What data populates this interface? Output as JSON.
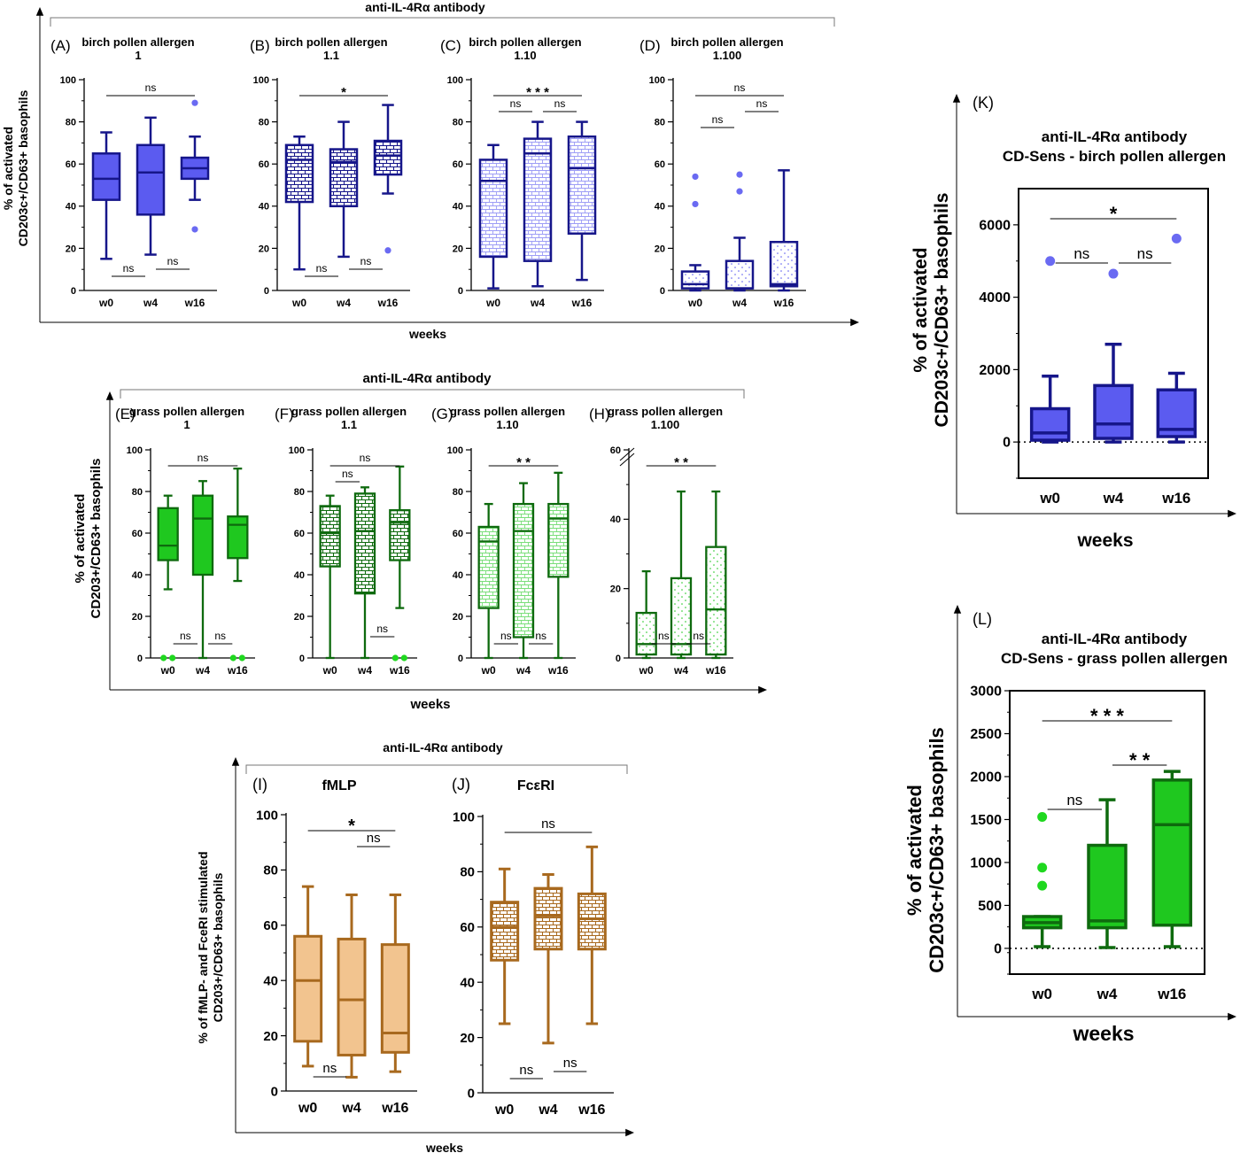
{
  "figure": {
    "antibody_label": "anti-IL-4Rα antibody",
    "xlabel": "weeks",
    "ylabel_line1": "% of activated",
    "ylabel_line2_a": "CD203c+/CD63+ basophils",
    "ylabel_line2_b": "CD203+/CD63+ basophils",
    "ylabel_I_line1": "% of fMLP- and FceRI stimulated",
    "ylabel_I_line2": "CD203+/CD63+ basophils"
  },
  "colors": {
    "birch_fill": "#5b5bf0",
    "birch_edge": "#16168a",
    "grass_fill": "#1fc81f",
    "grass_edge": "#0e6a0e",
    "ctrl_fill": "#f2c48f",
    "ctrl_edge": "#a8691e",
    "birch_outlier": "#6a6af2",
    "grass_outlier": "#1fd81f"
  },
  "chart_data": [
    {
      "id": "A",
      "type": "box",
      "panel_label": "(A)",
      "title": [
        "birch pollen allergen",
        "1"
      ],
      "categories": [
        "w0",
        "w4",
        "w16"
      ],
      "ylim": [
        0,
        100
      ],
      "yticks": [
        0,
        20,
        40,
        60,
        80,
        100
      ],
      "style": "birch",
      "pattern": "solid",
      "boxes": [
        {
          "whisker_low": 15,
          "q1": 43,
          "median": 53,
          "q3": 65,
          "whisker_high": 75,
          "outliers": []
        },
        {
          "whisker_low": 17,
          "q1": 36,
          "median": 56,
          "q3": 69,
          "whisker_high": 82,
          "outliers": []
        },
        {
          "whisker_low": 43,
          "q1": 53,
          "median": 58,
          "q3": 63,
          "whisker_high": 73,
          "outliers": [
            29,
            89
          ]
        }
      ],
      "significance": [
        {
          "from": 0,
          "to": 2,
          "label": "ns",
          "pos": "top",
          "level": 0
        },
        {
          "from": 0,
          "to": 1,
          "label": "ns",
          "pos": "bottom",
          "level": 0
        },
        {
          "from": 1,
          "to": 2,
          "label": "ns",
          "pos": "bottom",
          "level": 1
        }
      ]
    },
    {
      "id": "B",
      "type": "box",
      "panel_label": "(B)",
      "title": [
        "birch pollen allergen",
        "1.1"
      ],
      "categories": [
        "w0",
        "w4",
        "w16"
      ],
      "ylim": [
        0,
        100
      ],
      "yticks": [
        0,
        20,
        40,
        60,
        80,
        100
      ],
      "style": "birch",
      "pattern": "brick",
      "boxes": [
        {
          "whisker_low": 10,
          "q1": 42,
          "median": 62,
          "q3": 69,
          "whisker_high": 73,
          "outliers": []
        },
        {
          "whisker_low": 16,
          "q1": 40,
          "median": 61,
          "q3": 67,
          "whisker_high": 80,
          "outliers": []
        },
        {
          "whisker_low": 46,
          "q1": 55,
          "median": 64,
          "q3": 71,
          "whisker_high": 88,
          "outliers": [
            19
          ]
        }
      ],
      "significance": [
        {
          "from": 0,
          "to": 2,
          "label": "*",
          "pos": "top",
          "level": 0
        },
        {
          "from": 0,
          "to": 1,
          "label": "ns",
          "pos": "bottom",
          "level": 0
        },
        {
          "from": 1,
          "to": 2,
          "label": "ns",
          "pos": "bottom",
          "level": 1
        }
      ]
    },
    {
      "id": "C",
      "type": "box",
      "panel_label": "(C)",
      "title": [
        "birch pollen allergen",
        "1.10"
      ],
      "categories": [
        "w0",
        "w4",
        "w16"
      ],
      "ylim": [
        0,
        100
      ],
      "yticks": [
        0,
        20,
        40,
        60,
        80,
        100
      ],
      "style": "birch",
      "pattern": "lightbrick",
      "boxes": [
        {
          "whisker_low": 1,
          "q1": 16,
          "median": 52,
          "q3": 62,
          "whisker_high": 69,
          "outliers": []
        },
        {
          "whisker_low": 2,
          "q1": 14,
          "median": 65,
          "q3": 72,
          "whisker_high": 80,
          "outliers": []
        },
        {
          "whisker_low": 5,
          "q1": 27,
          "median": 58,
          "q3": 73,
          "whisker_high": 80,
          "outliers": []
        }
      ],
      "significance": [
        {
          "from": 0,
          "to": 2,
          "label": "* * *",
          "pos": "top",
          "level": 0
        },
        {
          "from": 0,
          "to": 1,
          "label": "ns",
          "pos": "top",
          "level": 1
        },
        {
          "from": 1,
          "to": 2,
          "label": "ns",
          "pos": "top",
          "level": 1
        }
      ]
    },
    {
      "id": "D",
      "type": "box",
      "panel_label": "(D)",
      "title": [
        "birch pollen allergen",
        "1.100"
      ],
      "categories": [
        "w0",
        "w4",
        "w16"
      ],
      "ylim": [
        0,
        100
      ],
      "yticks": [
        0,
        20,
        40,
        60,
        80,
        100
      ],
      "style": "birch",
      "pattern": "dots",
      "boxes": [
        {
          "whisker_low": 0,
          "q1": 1,
          "median": 3,
          "q3": 9,
          "whisker_high": 12,
          "outliers": [
            41,
            54
          ]
        },
        {
          "whisker_low": 0,
          "q1": 1,
          "median": 1,
          "q3": 14,
          "whisker_high": 25,
          "outliers": [
            47,
            55
          ]
        },
        {
          "whisker_low": 0,
          "q1": 2,
          "median": 3,
          "q3": 23,
          "whisker_high": 57,
          "outliers": []
        }
      ],
      "significance": [
        {
          "from": 0,
          "to": 2,
          "label": "ns",
          "pos": "top",
          "level": 0
        },
        {
          "from": 1,
          "to": 2,
          "label": "ns",
          "pos": "top",
          "level": 1
        },
        {
          "from": 0,
          "to": 1,
          "label": "ns",
          "pos": "top",
          "level": 2
        }
      ]
    },
    {
      "id": "E",
      "type": "box",
      "panel_label": "(E)",
      "title": [
        "grass pollen allergen",
        "1"
      ],
      "categories": [
        "w0",
        "w4",
        "w16"
      ],
      "ylim": [
        0,
        100
      ],
      "yticks": [
        0,
        20,
        40,
        60,
        80,
        100
      ],
      "style": "grass",
      "pattern": "solid",
      "boxes": [
        {
          "whisker_low": 33,
          "q1": 47,
          "median": 54,
          "q3": 72,
          "whisker_high": 78,
          "outliers": [
            0,
            0
          ]
        },
        {
          "whisker_low": 0,
          "q1": 40,
          "median": 67,
          "q3": 78,
          "whisker_high": 85,
          "outliers": []
        },
        {
          "whisker_low": 37,
          "q1": 48,
          "median": 64,
          "q3": 68,
          "whisker_high": 91,
          "outliers": [
            0,
            0
          ]
        }
      ],
      "significance": [
        {
          "from": 0,
          "to": 2,
          "label": "ns",
          "pos": "top",
          "level": 0
        },
        {
          "from": 0,
          "to": 1,
          "label": "ns",
          "pos": "bottom",
          "level": 0
        },
        {
          "from": 1,
          "to": 2,
          "label": "ns",
          "pos": "bottom",
          "level": 0
        }
      ]
    },
    {
      "id": "F",
      "type": "box",
      "panel_label": "(F)",
      "title": [
        "grass pollen allergen",
        "1.1"
      ],
      "categories": [
        "w0",
        "w4",
        "w16"
      ],
      "ylim": [
        0,
        100
      ],
      "yticks": [
        0,
        20,
        40,
        60,
        80,
        100
      ],
      "style": "grass",
      "pattern": "brick",
      "boxes": [
        {
          "whisker_low": 0,
          "q1": 44,
          "median": 60,
          "q3": 73,
          "whisker_high": 78,
          "outliers": []
        },
        {
          "whisker_low": 0,
          "q1": 31,
          "median": 61,
          "q3": 79,
          "whisker_high": 82,
          "outliers": []
        },
        {
          "whisker_low": 24,
          "q1": 47,
          "median": 65,
          "q3": 71,
          "whisker_high": 92,
          "outliers": [
            0,
            0
          ]
        }
      ],
      "significance": [
        {
          "from": 0,
          "to": 2,
          "label": "ns",
          "pos": "top",
          "level": 0
        },
        {
          "from": 0,
          "to": 1,
          "label": "ns",
          "pos": "top",
          "level": 1
        },
        {
          "from": 1,
          "to": 2,
          "label": "ns",
          "pos": "bottom",
          "level": 1
        }
      ]
    },
    {
      "id": "G",
      "type": "box",
      "panel_label": "(G)",
      "title": [
        "grass pollen allergen",
        "1.10"
      ],
      "categories": [
        "w0",
        "w4",
        "w16"
      ],
      "ylim": [
        0,
        100
      ],
      "yticks": [
        0,
        20,
        40,
        60,
        80,
        100
      ],
      "style": "grass",
      "pattern": "lightbrick",
      "boxes": [
        {
          "whisker_low": 0,
          "q1": 24,
          "median": 56,
          "q3": 63,
          "whisker_high": 74,
          "outliers": []
        },
        {
          "whisker_low": 0,
          "q1": 10,
          "median": 61,
          "q3": 74,
          "whisker_high": 84,
          "outliers": []
        },
        {
          "whisker_low": 0,
          "q1": 39,
          "median": 67,
          "q3": 74,
          "whisker_high": 89,
          "outliers": []
        }
      ],
      "significance": [
        {
          "from": 0,
          "to": 2,
          "label": "* *",
          "pos": "top",
          "level": 0
        },
        {
          "from": 0,
          "to": 1,
          "label": "ns",
          "pos": "bottom",
          "level": 0
        },
        {
          "from": 1,
          "to": 2,
          "label": "ns",
          "pos": "bottom",
          "level": 0
        }
      ]
    },
    {
      "id": "H",
      "type": "box",
      "panel_label": "(H)",
      "title": [
        "grass pollen allergen",
        "1.100"
      ],
      "categories": [
        "w0",
        "w4",
        "w16"
      ],
      "ylim": [
        0,
        60
      ],
      "yticks": [
        0,
        20,
        40,
        60
      ],
      "axis_break": true,
      "style": "grass",
      "pattern": "dots",
      "boxes": [
        {
          "whisker_low": 0,
          "q1": 1,
          "median": 4,
          "q3": 13,
          "whisker_high": 25,
          "outliers": []
        },
        {
          "whisker_low": 0,
          "q1": 1,
          "median": 4,
          "q3": 23,
          "whisker_high": 48,
          "outliers": []
        },
        {
          "whisker_low": 0,
          "q1": 1,
          "median": 14,
          "q3": 32,
          "whisker_high": 48,
          "outliers": []
        }
      ],
      "significance": [
        {
          "from": 0,
          "to": 2,
          "label": "* *",
          "pos": "top",
          "level": 0
        },
        {
          "from": 0,
          "to": 1,
          "label": "ns",
          "pos": "bottom",
          "level": 0
        },
        {
          "from": 1,
          "to": 2,
          "label": "ns",
          "pos": "bottom",
          "level": 0
        }
      ]
    },
    {
      "id": "I",
      "type": "box",
      "panel_label": "(I)",
      "title": [
        "fMLP"
      ],
      "categories": [
        "w0",
        "w4",
        "w16"
      ],
      "ylim": [
        0,
        100
      ],
      "yticks": [
        0,
        20,
        40,
        60,
        80,
        100
      ],
      "style": "ctrl",
      "pattern": "solid",
      "boxes": [
        {
          "whisker_low": 9,
          "q1": 18,
          "median": 40,
          "q3": 56,
          "whisker_high": 74,
          "outliers": []
        },
        {
          "whisker_low": 5,
          "q1": 13,
          "median": 33,
          "q3": 55,
          "whisker_high": 71,
          "outliers": []
        },
        {
          "whisker_low": 7,
          "q1": 14,
          "median": 21,
          "q3": 53,
          "whisker_high": 71,
          "outliers": []
        }
      ],
      "significance": [
        {
          "from": 0,
          "to": 2,
          "label": "*",
          "pos": "top",
          "level": 0
        },
        {
          "from": 1,
          "to": 2,
          "label": "ns",
          "pos": "top",
          "level": 1
        },
        {
          "from": 0,
          "to": 1,
          "label": "ns",
          "pos": "bottom",
          "level": 0
        }
      ]
    },
    {
      "id": "J",
      "type": "box",
      "panel_label": "(J)",
      "title": [
        "FcεRI"
      ],
      "categories": [
        "w0",
        "w4",
        "w16"
      ],
      "ylim": [
        0,
        100
      ],
      "yticks": [
        0,
        20,
        40,
        60,
        80,
        100
      ],
      "style": "ctrl",
      "pattern": "brick",
      "boxes": [
        {
          "whisker_low": 25,
          "q1": 48,
          "median": 60,
          "q3": 69,
          "whisker_high": 81,
          "outliers": []
        },
        {
          "whisker_low": 18,
          "q1": 52,
          "median": 64,
          "q3": 74,
          "whisker_high": 79,
          "outliers": []
        },
        {
          "whisker_low": 25,
          "q1": 52,
          "median": 63,
          "q3": 72,
          "whisker_high": 89,
          "outliers": []
        }
      ],
      "significance": [
        {
          "from": 0,
          "to": 2,
          "label": "ns",
          "pos": "top",
          "level": 0
        },
        {
          "from": 0,
          "to": 1,
          "label": "ns",
          "pos": "bottom",
          "level": 0
        },
        {
          "from": 1,
          "to": 2,
          "label": "ns",
          "pos": "bottom",
          "level": 1
        }
      ]
    },
    {
      "id": "K",
      "type": "box",
      "panel_label": "(K)",
      "title": [
        "anti-IL-4Rα antibody",
        "CD-Sens - birch pollen allergen"
      ],
      "categories": [
        "w0",
        "w4",
        "w16"
      ],
      "ylim": [
        -1000,
        7000
      ],
      "yticks": [
        0,
        2000,
        4000,
        6000
      ],
      "style": "birch",
      "pattern": "solid",
      "boxes": [
        {
          "whisker_low": 0,
          "q1": 50,
          "median": 250,
          "q3": 920,
          "whisker_high": 1820,
          "outliers": [
            5000
          ]
        },
        {
          "whisker_low": 0,
          "q1": 100,
          "median": 500,
          "q3": 1560,
          "whisker_high": 2700,
          "outliers": [
            4650
          ]
        },
        {
          "whisker_low": 0,
          "q1": 150,
          "median": 350,
          "q3": 1440,
          "whisker_high": 1900,
          "outliers": [
            5620
          ]
        }
      ],
      "significance": [
        {
          "from": 0,
          "to": 2,
          "label": "*",
          "pos": "top",
          "level": 0
        },
        {
          "from": 0,
          "to": 1,
          "label": "ns",
          "pos": "top",
          "level": 1
        },
        {
          "from": 1,
          "to": 2,
          "label": "ns",
          "pos": "top",
          "level": 1
        }
      ]
    },
    {
      "id": "L",
      "type": "box",
      "panel_label": "(L)",
      "title": [
        "anti-IL-4Rα antibody",
        "CD-Sens - grass pollen allergen"
      ],
      "categories": [
        "w0",
        "w4",
        "w16"
      ],
      "ylim": [
        -300,
        3000
      ],
      "yticks": [
        0,
        500,
        1000,
        1500,
        2000,
        2500,
        3000
      ],
      "style": "grass",
      "pattern": "solid",
      "boxes": [
        {
          "whisker_low": 20,
          "q1": 240,
          "median": 300,
          "q3": 370,
          "whisker_high": 370,
          "outliers": [
            730,
            940,
            1530
          ]
        },
        {
          "whisker_low": 10,
          "q1": 240,
          "median": 320,
          "q3": 1200,
          "whisker_high": 1730,
          "outliers": []
        },
        {
          "whisker_low": 20,
          "q1": 270,
          "median": 1440,
          "q3": 1960,
          "whisker_high": 2060,
          "outliers": []
        }
      ],
      "significance": [
        {
          "from": 0,
          "to": 2,
          "label": "* * *",
          "pos": "top",
          "level": 0
        },
        {
          "from": 1,
          "to": 2,
          "label": "* *",
          "pos": "top",
          "level": 1
        },
        {
          "from": 0,
          "to": 1,
          "label": "ns",
          "pos": "top",
          "level": 2
        }
      ]
    }
  ]
}
